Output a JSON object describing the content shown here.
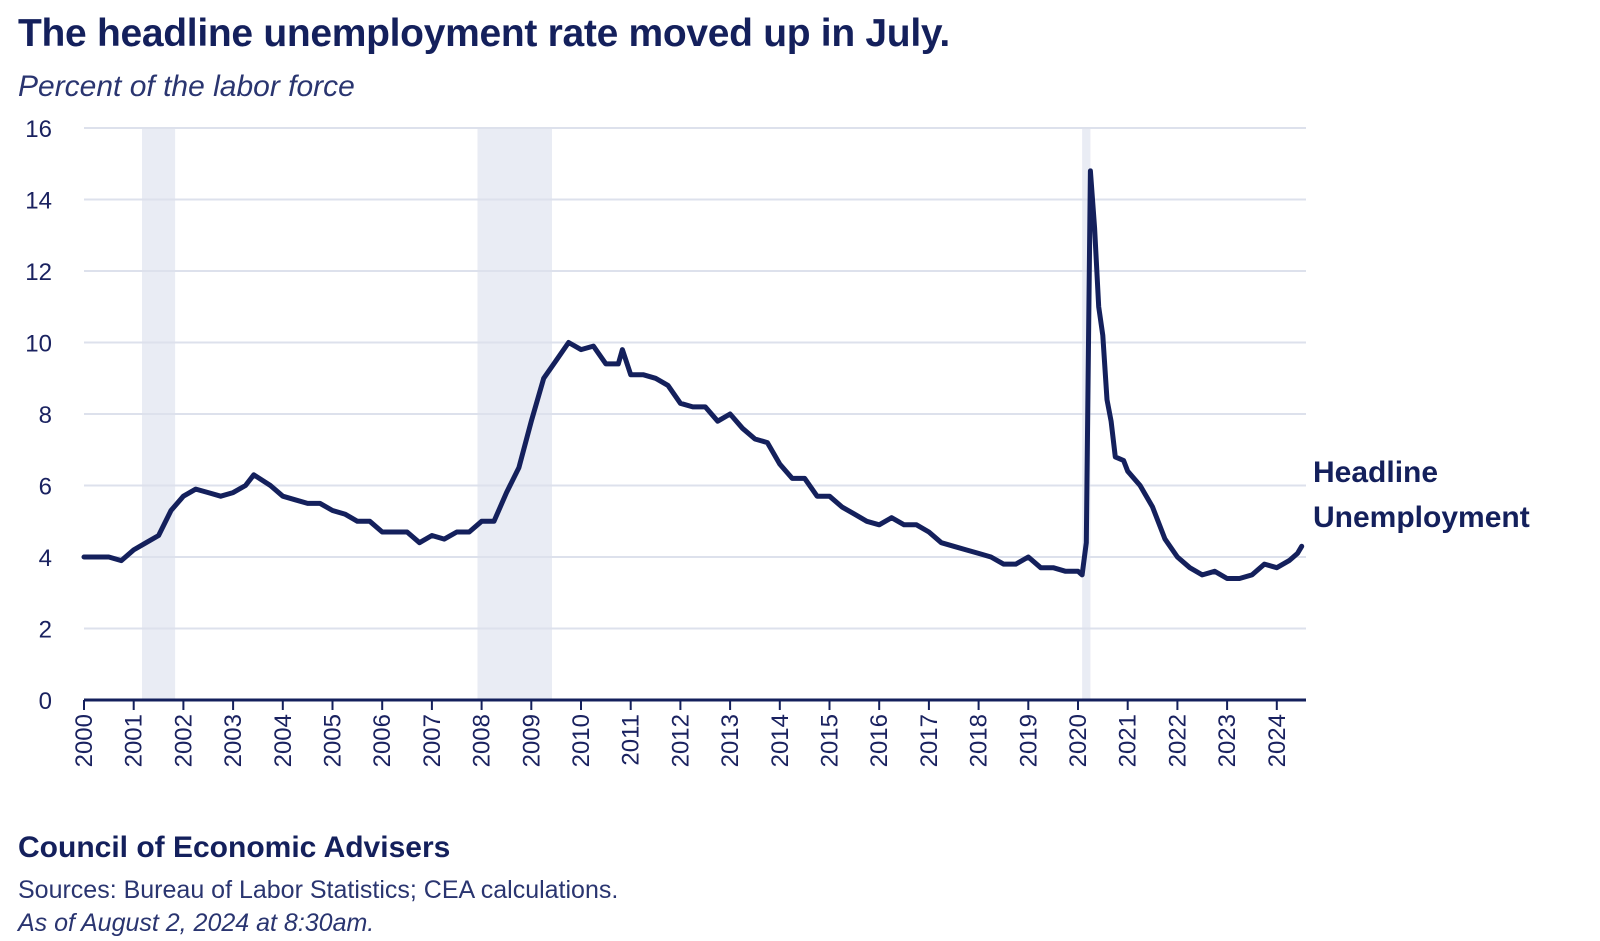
{
  "header": {
    "title": "The headline unemployment rate moved up in July.",
    "subtitle": "Percent of the labor force"
  },
  "footer": {
    "organization": "Council of Economic Advisers",
    "sources": "Sources: Bureau of Labor Statistics; CEA calculations.",
    "as_of": "As of August 2, 2024 at 8:30am."
  },
  "colors": {
    "line": "#14205c",
    "recession_band": "#e9ecf4",
    "grid": "#dde1ec",
    "axis": "#14205c"
  },
  "chart_data": {
    "type": "line",
    "title": "The headline unemployment rate moved up in July.",
    "subtitle": "Percent of the labor force",
    "xlabel": "",
    "ylabel": "",
    "ylim": [
      0,
      16
    ],
    "xlim": [
      2000.0,
      2024.58
    ],
    "y_ticks": [
      0,
      2,
      4,
      6,
      8,
      10,
      12,
      14,
      16
    ],
    "x_ticks": [
      "2000",
      "2001",
      "2002",
      "2003",
      "2004",
      "2005",
      "2006",
      "2007",
      "2008",
      "2009",
      "2010",
      "2011",
      "2012",
      "2013",
      "2014",
      "2015",
      "2016",
      "2017",
      "2018",
      "2019",
      "2020",
      "2021",
      "2022",
      "2023",
      "2024"
    ],
    "grid": "horizontal",
    "recession_bands": [
      {
        "start": "2001-03",
        "end": "2001-11"
      },
      {
        "start": "2007-12",
        "end": "2009-06"
      },
      {
        "start": "2020-02",
        "end": "2020-04"
      }
    ],
    "series": [
      {
        "name": "Headline Unemployment",
        "points": [
          [
            "2000-01",
            4.0
          ],
          [
            "2000-04",
            4.0
          ],
          [
            "2000-07",
            4.0
          ],
          [
            "2000-10",
            3.9
          ],
          [
            "2001-01",
            4.2
          ],
          [
            "2001-04",
            4.4
          ],
          [
            "2001-07",
            4.6
          ],
          [
            "2001-10",
            5.3
          ],
          [
            "2002-01",
            5.7
          ],
          [
            "2002-04",
            5.9
          ],
          [
            "2002-07",
            5.8
          ],
          [
            "2002-10",
            5.7
          ],
          [
            "2003-01",
            5.8
          ],
          [
            "2003-04",
            6.0
          ],
          [
            "2003-06",
            6.3
          ],
          [
            "2003-10",
            6.0
          ],
          [
            "2004-01",
            5.7
          ],
          [
            "2004-04",
            5.6
          ],
          [
            "2004-07",
            5.5
          ],
          [
            "2004-10",
            5.5
          ],
          [
            "2005-01",
            5.3
          ],
          [
            "2005-04",
            5.2
          ],
          [
            "2005-07",
            5.0
          ],
          [
            "2005-10",
            5.0
          ],
          [
            "2006-01",
            4.7
          ],
          [
            "2006-04",
            4.7
          ],
          [
            "2006-07",
            4.7
          ],
          [
            "2006-10",
            4.4
          ],
          [
            "2007-01",
            4.6
          ],
          [
            "2007-04",
            4.5
          ],
          [
            "2007-07",
            4.7
          ],
          [
            "2007-10",
            4.7
          ],
          [
            "2008-01",
            5.0
          ],
          [
            "2008-04",
            5.0
          ],
          [
            "2008-07",
            5.8
          ],
          [
            "2008-10",
            6.5
          ],
          [
            "2009-01",
            7.8
          ],
          [
            "2009-04",
            9.0
          ],
          [
            "2009-07",
            9.5
          ],
          [
            "2009-10",
            10.0
          ],
          [
            "2010-01",
            9.8
          ],
          [
            "2010-04",
            9.9
          ],
          [
            "2010-07",
            9.4
          ],
          [
            "2010-10",
            9.4
          ],
          [
            "2010-11",
            9.8
          ],
          [
            "2011-01",
            9.1
          ],
          [
            "2011-04",
            9.1
          ],
          [
            "2011-07",
            9.0
          ],
          [
            "2011-10",
            8.8
          ],
          [
            "2012-01",
            8.3
          ],
          [
            "2012-04",
            8.2
          ],
          [
            "2012-07",
            8.2
          ],
          [
            "2012-10",
            7.8
          ],
          [
            "2013-01",
            8.0
          ],
          [
            "2013-04",
            7.6
          ],
          [
            "2013-07",
            7.3
          ],
          [
            "2013-10",
            7.2
          ],
          [
            "2014-01",
            6.6
          ],
          [
            "2014-04",
            6.2
          ],
          [
            "2014-07",
            6.2
          ],
          [
            "2014-10",
            5.7
          ],
          [
            "2015-01",
            5.7
          ],
          [
            "2015-04",
            5.4
          ],
          [
            "2015-07",
            5.2
          ],
          [
            "2015-10",
            5.0
          ],
          [
            "2016-01",
            4.9
          ],
          [
            "2016-04",
            5.1
          ],
          [
            "2016-07",
            4.9
          ],
          [
            "2016-10",
            4.9
          ],
          [
            "2017-01",
            4.7
          ],
          [
            "2017-04",
            4.4
          ],
          [
            "2017-07",
            4.3
          ],
          [
            "2017-10",
            4.2
          ],
          [
            "2018-01",
            4.1
          ],
          [
            "2018-04",
            4.0
          ],
          [
            "2018-07",
            3.8
          ],
          [
            "2018-10",
            3.8
          ],
          [
            "2019-01",
            4.0
          ],
          [
            "2019-04",
            3.7
          ],
          [
            "2019-07",
            3.7
          ],
          [
            "2019-10",
            3.6
          ],
          [
            "2020-01",
            3.6
          ],
          [
            "2020-02",
            3.5
          ],
          [
            "2020-03",
            4.4
          ],
          [
            "2020-04",
            14.8
          ],
          [
            "2020-05",
            13.2
          ],
          [
            "2020-06",
            11.0
          ],
          [
            "2020-07",
            10.2
          ],
          [
            "2020-08",
            8.4
          ],
          [
            "2020-09",
            7.8
          ],
          [
            "2020-10",
            6.8
          ],
          [
            "2020-12",
            6.7
          ],
          [
            "2021-01",
            6.4
          ],
          [
            "2021-04",
            6.0
          ],
          [
            "2021-07",
            5.4
          ],
          [
            "2021-10",
            4.5
          ],
          [
            "2022-01",
            4.0
          ],
          [
            "2022-04",
            3.7
          ],
          [
            "2022-07",
            3.5
          ],
          [
            "2022-10",
            3.6
          ],
          [
            "2023-01",
            3.4
          ],
          [
            "2023-04",
            3.4
          ],
          [
            "2023-07",
            3.5
          ],
          [
            "2023-10",
            3.8
          ],
          [
            "2024-01",
            3.7
          ],
          [
            "2024-04",
            3.9
          ],
          [
            "2024-06",
            4.1
          ],
          [
            "2024-07",
            4.3
          ]
        ]
      }
    ]
  }
}
